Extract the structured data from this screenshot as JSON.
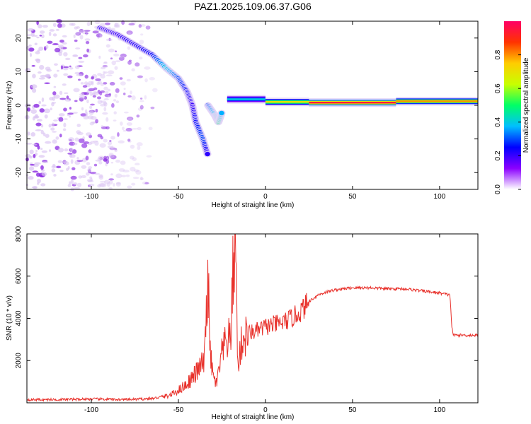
{
  "title": "PAZ1.2025.109.06.37.G06",
  "colors": {
    "snr_line": "#e8312b",
    "spectrogram_scatter": "#8a2be2",
    "background": "#ffffff"
  },
  "chart_data": [
    {
      "type": "heatmap",
      "name": "spectrogram",
      "xlabel": "Height of straight line (km)",
      "ylabel": "Frequency (Hz)",
      "xlim": [
        -137,
        122
      ],
      "ylim": [
        -25,
        25
      ],
      "xticks": [
        -100,
        -50,
        0,
        50,
        100
      ],
      "yticks": [
        -20,
        -10,
        0,
        10,
        20
      ],
      "colorbar": {
        "label": "Normalized spectral amplitude",
        "range": [
          0,
          1
        ],
        "ticks": [
          "0.0",
          "0.2",
          "0.4",
          "0.6",
          "0.8"
        ],
        "colormap": [
          "#ffffff",
          "#8b00ff",
          "#0000ff",
          "#00bfff",
          "#00ff66",
          "#c8ff00",
          "#ffcc00",
          "#ff3300",
          "#ff0066"
        ]
      },
      "features": {
        "noise_region_height_km": [
          -137,
          -60
        ],
        "ridge_points": [
          {
            "x": -95,
            "y": 23,
            "amp": 0.2
          },
          {
            "x": -85,
            "y": 21,
            "amp": 0.2
          },
          {
            "x": -75,
            "y": 18,
            "amp": 0.22
          },
          {
            "x": -65,
            "y": 15,
            "amp": 0.25
          },
          {
            "x": -57,
            "y": 11,
            "amp": 0.4
          },
          {
            "x": -50,
            "y": 8,
            "amp": 0.3
          },
          {
            "x": -45,
            "y": 4,
            "amp": 0.25
          },
          {
            "x": -42,
            "y": 0,
            "amp": 0.2
          },
          {
            "x": -40,
            "y": -5,
            "amp": 0.25
          },
          {
            "x": -36,
            "y": -10,
            "amp": 0.3
          },
          {
            "x": -33,
            "y": -15,
            "amp": 0.2
          }
        ],
        "branch_points": [
          {
            "x": -33,
            "y": 0,
            "amp": 0.3
          },
          {
            "x": -29,
            "y": -3,
            "amp": 0.4
          },
          {
            "x": -27,
            "y": -5,
            "amp": 0.5
          },
          {
            "x": -25,
            "y": -2,
            "amp": 0.35
          }
        ],
        "line_segments": [
          {
            "x0": -22,
            "x1": 0,
            "y": 1.8,
            "amp": 0.4
          },
          {
            "x0": 0,
            "x1": 25,
            "y": 1.0,
            "amp": 0.7
          },
          {
            "x0": 25,
            "x1": 75,
            "y": 0.8,
            "amp": 0.95
          },
          {
            "x0": 75,
            "x1": 122,
            "y": 1.2,
            "amp": 0.8
          }
        ]
      }
    },
    {
      "type": "line",
      "name": "snr",
      "xlabel": "Height of straight line (km)",
      "ylabel": "SNR (10 * v/v)",
      "xlim": [
        -137,
        122
      ],
      "ylim": [
        0,
        8000
      ],
      "xticks": [
        -100,
        -50,
        0,
        50,
        100
      ],
      "yticks": [
        2000,
        4000,
        6000,
        8000
      ],
      "series": [
        {
          "x": [
            -137,
            -120,
            -100,
            -80,
            -65,
            -55,
            -50,
            -45,
            -40,
            -35,
            -33,
            -32,
            -30,
            -28,
            -25,
            -22,
            -20,
            -18,
            -17,
            -16,
            -15,
            -13,
            -10,
            -5,
            0,
            5,
            10,
            15,
            20,
            25,
            30,
            35,
            40,
            50,
            60,
            70,
            80,
            90,
            100,
            106,
            107,
            108,
            110,
            115,
            122
          ],
          "y": [
            150,
            150,
            180,
            150,
            200,
            350,
            600,
            900,
            1400,
            2000,
            6400,
            2500,
            1200,
            900,
            2300,
            3000,
            3000,
            7600,
            8000,
            1500,
            2300,
            3000,
            3300,
            3400,
            3600,
            3700,
            3800,
            4000,
            4300,
            4800,
            5100,
            5250,
            5350,
            5450,
            5450,
            5400,
            5400,
            5300,
            5200,
            5100,
            3600,
            3200,
            3200,
            3200,
            3200
          ]
        }
      ]
    }
  ]
}
